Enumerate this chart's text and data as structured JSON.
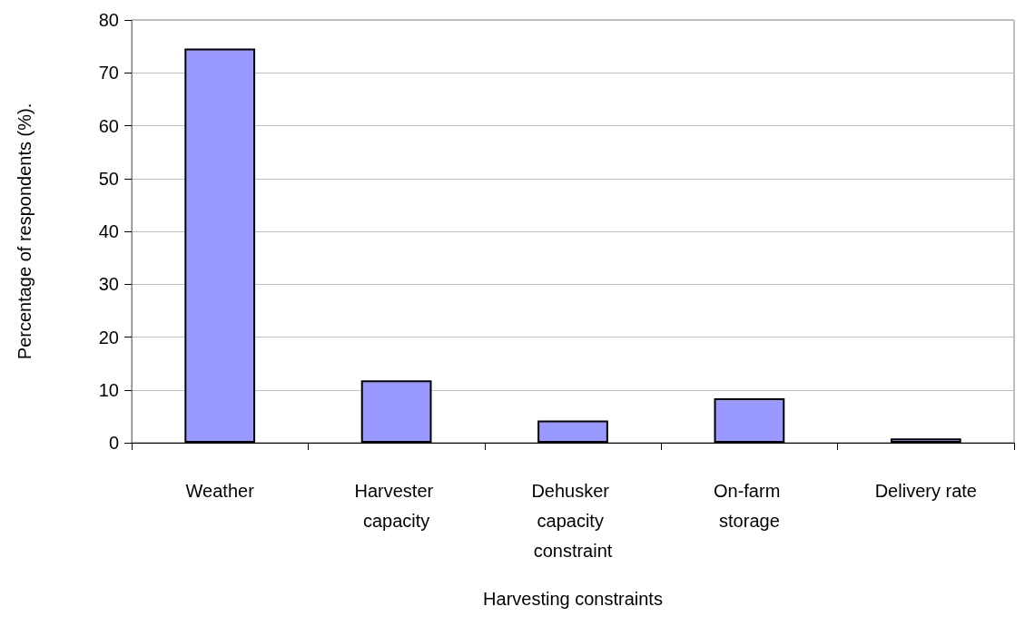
{
  "chart_data": {
    "type": "bar",
    "xlabel": "Harvesting constraints",
    "ylabel": "Percentage of respondents (%).",
    "categories": [
      "Weather",
      "Harvester capacity",
      "Dehusker capacity constraint",
      "On-farm storage",
      "Delivery rate"
    ],
    "values": [
      74.6,
      11.8,
      4.2,
      8.4,
      0.8
    ],
    "color": "#9999ff",
    "ylim": [
      0,
      80
    ],
    "yticks": [
      0,
      10,
      20,
      30,
      40,
      50,
      60,
      70,
      80
    ],
    "grid": "y"
  }
}
